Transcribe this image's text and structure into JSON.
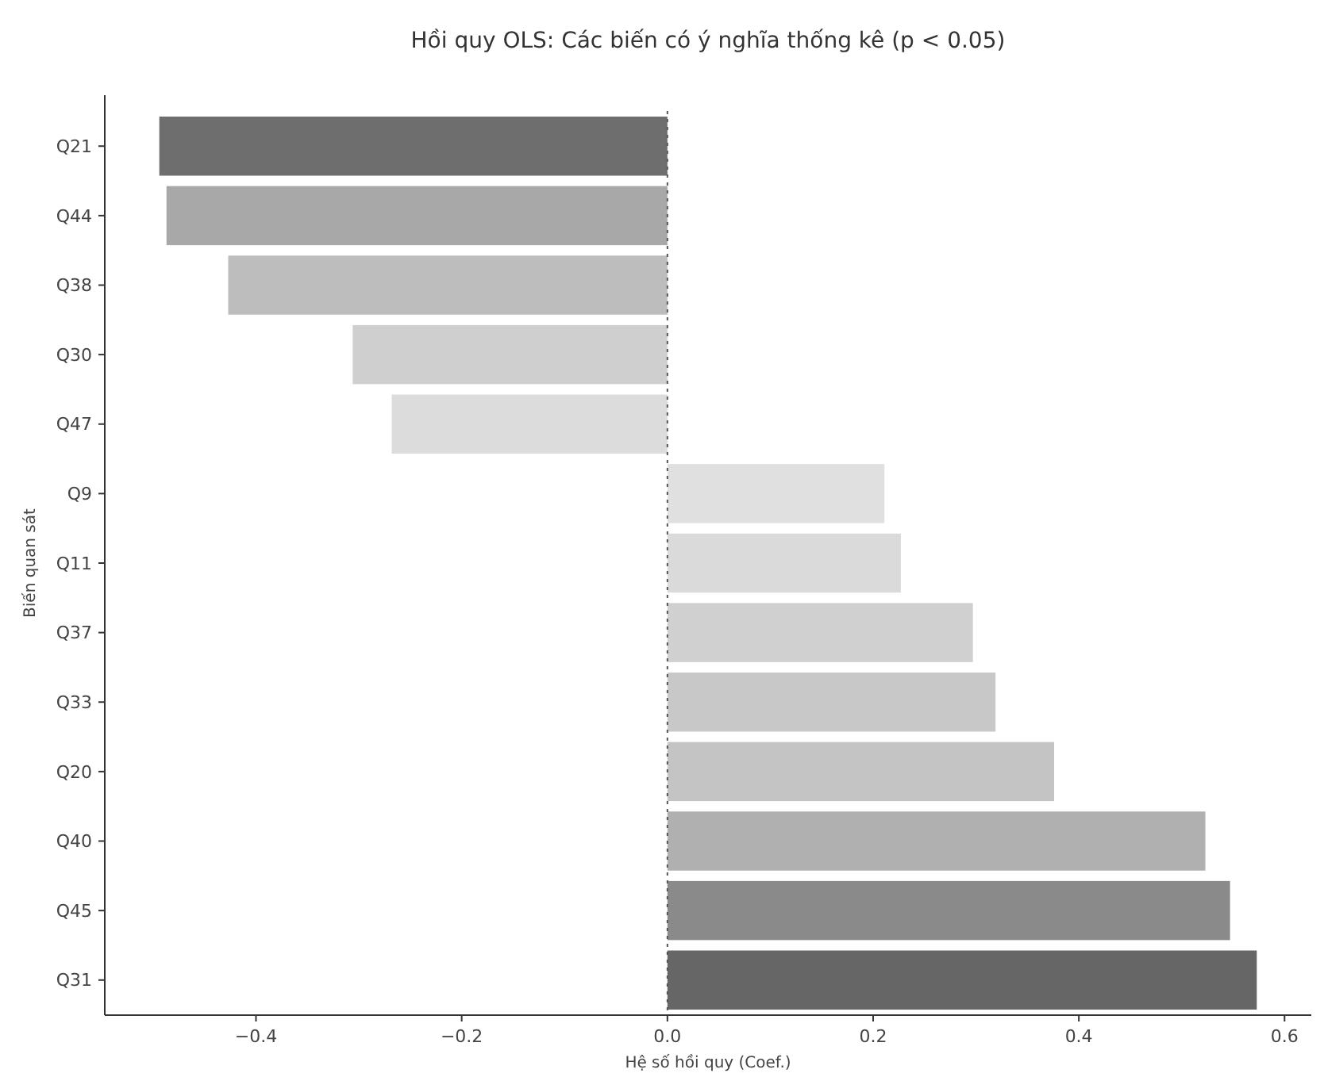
{
  "chart_data": {
    "type": "bar",
    "orientation": "horizontal",
    "title": "Hồi quy OLS: Các biến có ý nghĩa thống kê (p < 0.05)",
    "xlabel": "Hệ số hồi quy (Coef.)",
    "ylabel": "Biến quan sát",
    "categories": [
      "Q21",
      "Q44",
      "Q38",
      "Q30",
      "Q47",
      "Q9",
      "Q11",
      "Q37",
      "Q33",
      "Q20",
      "Q40",
      "Q45",
      "Q31"
    ],
    "values": [
      -0.494,
      -0.487,
      -0.427,
      -0.306,
      -0.268,
      0.211,
      0.227,
      0.297,
      0.319,
      0.376,
      0.523,
      0.547,
      0.573
    ],
    "colors": [
      "#6e6e6e",
      "#a8a8a8",
      "#bdbdbd",
      "#cfcfcf",
      "#dcdcdc",
      "#e0e0e0",
      "#dadada",
      "#d0d0d0",
      "#c8c8c8",
      "#c4c4c4",
      "#b0b0b0",
      "#8a8a8a",
      "#666666"
    ],
    "xlim": [
      -0.547,
      0.626
    ],
    "xticks": [
      {
        "value": -0.4,
        "label": "−0.4"
      },
      {
        "value": -0.2,
        "label": "−0.2"
      },
      {
        "value": 0,
        "label": "0.0"
      },
      {
        "value": 0.2,
        "label": "0.2"
      },
      {
        "value": 0.4,
        "label": "0.4"
      },
      {
        "value": 0.6,
        "label": "0.6"
      }
    ],
    "ref_lines": [
      {
        "axis": "x",
        "value": 0,
        "color": "#555555",
        "line_style": "dotted"
      }
    ],
    "grid": false
  }
}
